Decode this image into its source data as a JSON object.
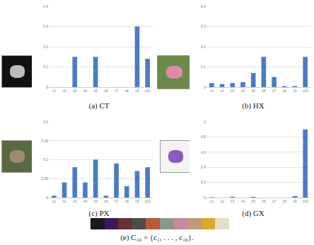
{
  "chart_data": [
    {
      "type": "bar",
      "title": "(a) CT",
      "categories": [
        "c1",
        "c2",
        "c3",
        "c4",
        "c5",
        "c6",
        "c7",
        "c8",
        "c9",
        "c10"
      ],
      "values": [
        0,
        0,
        0.15,
        0,
        0.15,
        0,
        0,
        0,
        0.3,
        0.14
      ],
      "color": "#4a7cc4",
      "ylim": [
        0,
        0.4
      ],
      "yticks": [
        0,
        0.1,
        0.2,
        0.3,
        0.4
      ],
      "grid": true
    },
    {
      "type": "bar",
      "title": "(b) HX",
      "categories": [
        "c1",
        "c2",
        "c3",
        "c4",
        "c5",
        "c6",
        "c7",
        "c8",
        "c9",
        "c10"
      ],
      "values": [
        0.02,
        0.015,
        0.02,
        0.025,
        0.07,
        0.15,
        0.05,
        0.005,
        0.005,
        0.15
      ],
      "color": "#4a7cc4",
      "ylim": [
        0,
        0.4
      ],
      "yticks": [
        0,
        0.1,
        0.2,
        0.3,
        0.4
      ],
      "grid": true
    },
    {
      "type": "bar",
      "title": "(c) PX",
      "categories": [
        "c1",
        "c2",
        "c3",
        "c4",
        "c5",
        "c6",
        "c7",
        "c8",
        "c9",
        "c10"
      ],
      "values": [
        0.005,
        0.04,
        0.08,
        0.04,
        0.1,
        0.005,
        0.09,
        0.03,
        0.07,
        0.08
      ],
      "color": "#4a7cc4",
      "ylim": [
        0,
        0.2
      ],
      "yticks": [
        0,
        0.05,
        0.1,
        0.15,
        0.2
      ],
      "grid": true
    },
    {
      "type": "bar",
      "title": "(d) GX",
      "categories": [
        "c1",
        "c2",
        "c3",
        "c4",
        "c5",
        "c6",
        "c7",
        "c8",
        "c9",
        "c10"
      ],
      "values": [
        0.005,
        0,
        0.01,
        0,
        0.01,
        0,
        0,
        0,
        0.02,
        0.9
      ],
      "color": "#4a7cc4",
      "ylim": [
        0,
        1
      ],
      "yticks": [
        0,
        0.2,
        0.4,
        0.6,
        0.8,
        1
      ],
      "grid": true
    }
  ],
  "palette": {
    "caption": "(e) C₁₀ = {c₁, . . . , c₁₀}.",
    "colors": [
      "#1a1a1a",
      "#3b1a5e",
      "#6b3030",
      "#4a5048",
      "#b85a3a",
      "#8a9a88",
      "#c48aa0",
      "#c09a78",
      "#d8a830",
      "#e0e0c8"
    ]
  }
}
